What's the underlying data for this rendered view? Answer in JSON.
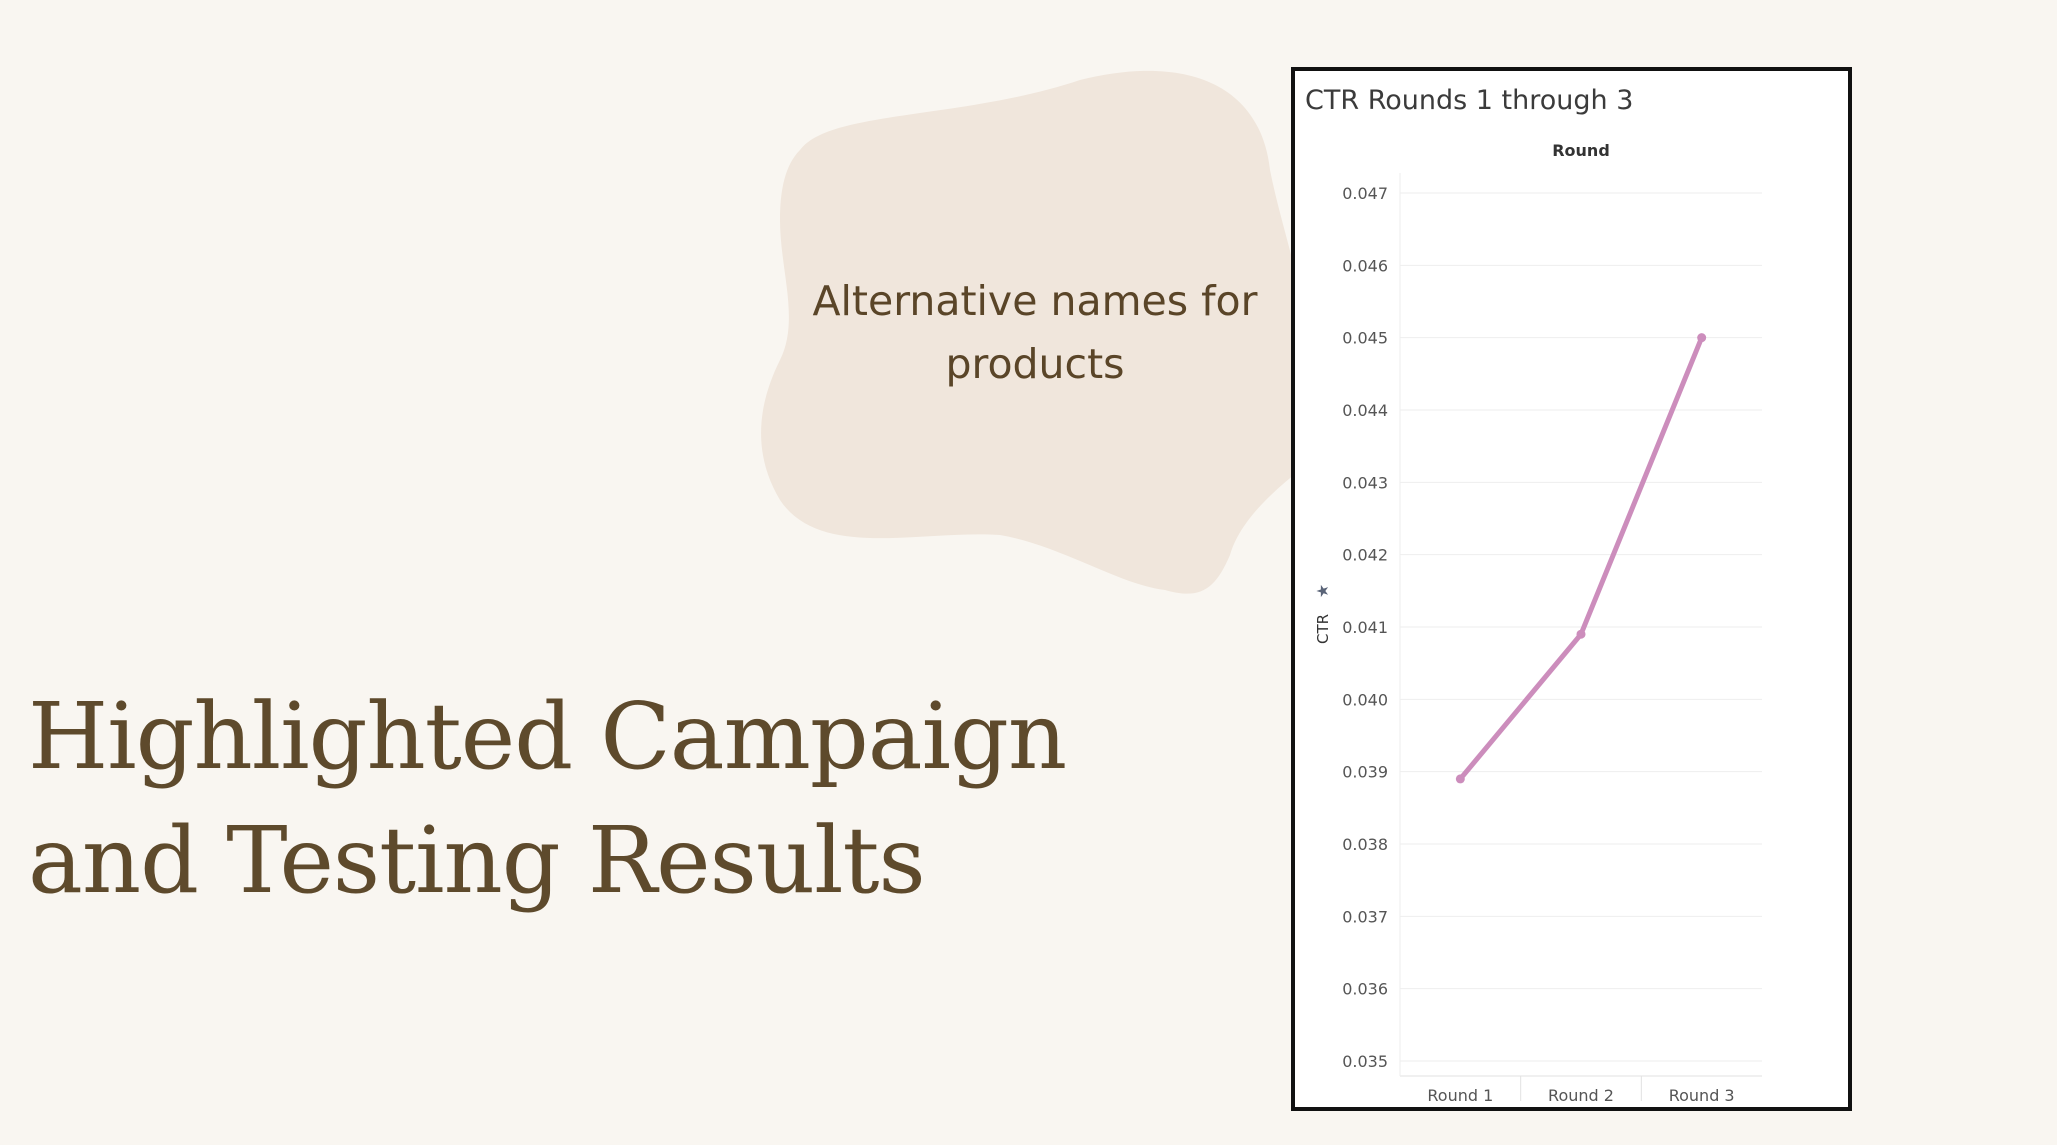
{
  "callout": {
    "line1": "Alternative names for",
    "line2": "products"
  },
  "headline": {
    "line1": "Highlighted Campaign",
    "line2": "and Testing Results"
  },
  "colors": {
    "background": "#f9f6f1",
    "blob": "#f0e6dc",
    "text_brown": "#5e4a2c",
    "line": "#cc8dbc"
  },
  "chart_data": {
    "type": "line",
    "title": "CTR Rounds 1 through 3",
    "column_header": "Round",
    "xlabel": "",
    "ylabel": "CTR",
    "ylabel_icon": "pin-icon",
    "categories": [
      "Round 1",
      "Round 2",
      "Round 3"
    ],
    "series": [
      {
        "values": [
          0.0389,
          0.0409,
          0.045
        ]
      }
    ],
    "ylim": [
      0.035,
      0.047
    ],
    "yticks": [
      "0.035",
      "0.036",
      "0.037",
      "0.038",
      "0.039",
      "0.040",
      "0.041",
      "0.042",
      "0.043",
      "0.044",
      "0.045",
      "0.046",
      "0.047"
    ],
    "grid": true,
    "legend": "none"
  }
}
